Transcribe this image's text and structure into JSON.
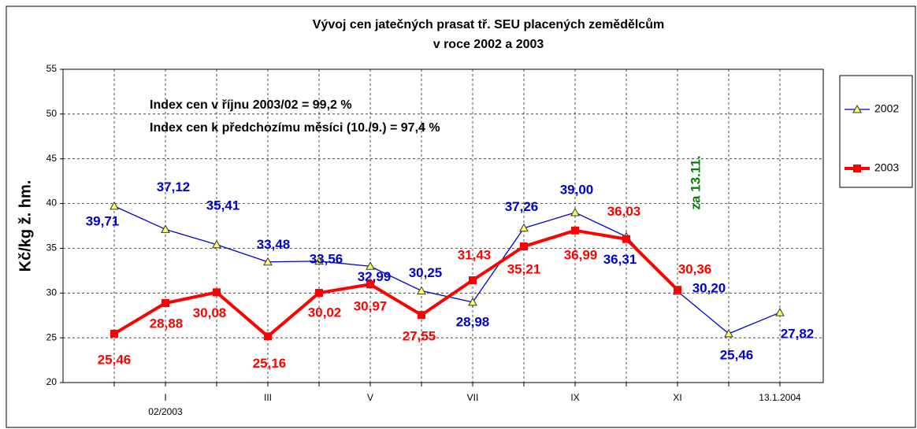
{
  "chart_data": {
    "type": "line",
    "title": [
      "Vývoj cen jatečných prasat tř. SEU placených zemědělcům",
      "v roce 2002 a 2003"
    ],
    "y_label": "Kč/kg ž. hm.",
    "annotations": [
      "Index cen v říjnu 2003/02 = 99,2 %",
      "Index cen k předchozímu měsíci (10./9.) = 97,4 %",
      "za 13.11."
    ],
    "categories": [
      null,
      "I",
      null,
      "III",
      null,
      "V",
      null,
      "VII",
      null,
      "IX",
      null,
      "XI",
      null,
      "13.1.2004"
    ],
    "x_sublabel": "02/2003",
    "series": [
      {
        "name": "2002",
        "color": "#0000cc",
        "marker_color": "#ffff66",
        "values": [
          39.71,
          37.12,
          35.41,
          33.48,
          33.56,
          32.99,
          30.25,
          28.98,
          37.26,
          39.0,
          36.31,
          30.2,
          25.46,
          27.82
        ],
        "value_labels": [
          "39,71",
          "37,12",
          "35,41",
          "33,48",
          "33,56",
          "32,99",
          "30,25",
          "28,98",
          "37,26",
          "39,00",
          "36,31",
          "30,20",
          "25,46",
          "27,82"
        ]
      },
      {
        "name": "2003",
        "color": "#ff0000",
        "values": [
          25.46,
          28.88,
          30.08,
          25.16,
          30.02,
          30.97,
          27.55,
          31.43,
          35.21,
          36.99,
          36.03,
          30.36,
          null,
          null
        ],
        "value_labels": [
          "25,46",
          "28,88",
          "30,08",
          "25,16",
          "30,02",
          "30,97",
          "27,55",
          "31,43",
          "35,21",
          "36,99",
          "36,03",
          "30,36",
          null,
          null
        ]
      }
    ],
    "ylim": [
      20,
      55
    ],
    "yticks": [
      20,
      25,
      30,
      35,
      40,
      45,
      50,
      55
    ],
    "grid": true,
    "legend": "right"
  }
}
